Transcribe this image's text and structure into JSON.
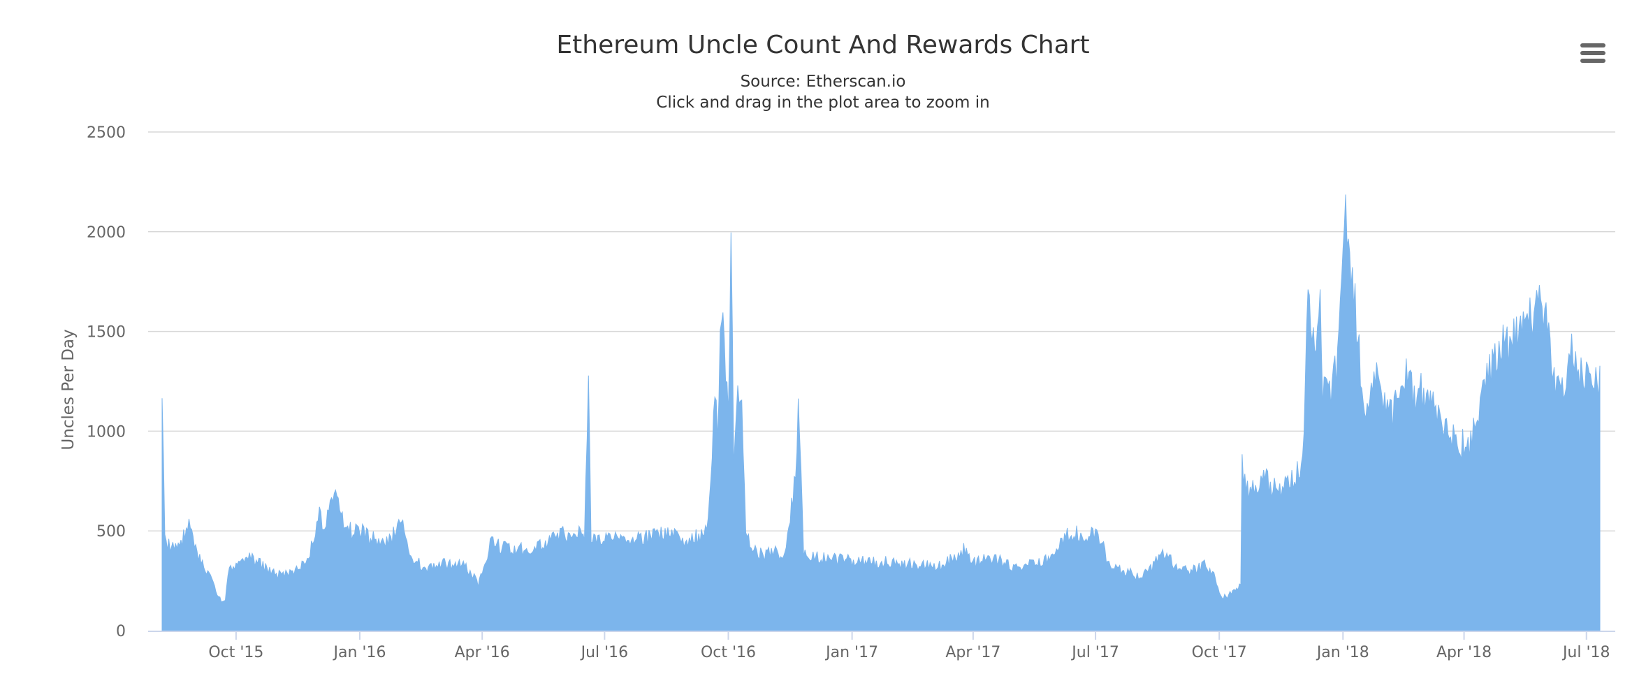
{
  "chart_data": {
    "type": "bar",
    "title": "Ethereum Uncle Count And Rewards Chart",
    "subtitle": [
      "Source: Etherscan.io",
      "Click and drag in the plot area to zoom in"
    ],
    "ylabel": "Uncles Per Day",
    "xlabel": "",
    "ylim": [
      0,
      2500
    ],
    "y_ticks": [
      0,
      500,
      1000,
      1500,
      2000,
      2500
    ],
    "x_range": [
      "2015-08-07",
      "2018-07-11"
    ],
    "x_ticks": [
      {
        "label": "Oct '15",
        "date": "2015-10-01"
      },
      {
        "label": "Jan '16",
        "date": "2016-01-01"
      },
      {
        "label": "Apr '16",
        "date": "2016-04-01"
      },
      {
        "label": "Jul '16",
        "date": "2016-07-01"
      },
      {
        "label": "Oct '16",
        "date": "2016-10-01"
      },
      {
        "label": "Jan '17",
        "date": "2017-01-01"
      },
      {
        "label": "Apr '17",
        "date": "2017-04-01"
      },
      {
        "label": "Jul '17",
        "date": "2017-07-01"
      },
      {
        "label": "Oct '17",
        "date": "2017-10-01"
      },
      {
        "label": "Jan '18",
        "date": "2018-01-01"
      },
      {
        "label": "Apr '18",
        "date": "2018-04-01"
      },
      {
        "label": "Jul '18",
        "date": "2018-07-01"
      }
    ],
    "grid": true,
    "legend": "none",
    "series": [
      {
        "color": "#7cb5ec",
        "points": [
          [
            "2015-08-07",
            1290
          ],
          [
            "2015-08-09",
            450
          ],
          [
            "2015-08-13",
            420
          ],
          [
            "2015-08-20",
            450
          ],
          [
            "2015-08-27",
            520
          ],
          [
            "2015-09-03",
            370
          ],
          [
            "2015-09-08",
            300
          ],
          [
            "2015-09-14",
            250
          ],
          [
            "2015-09-20",
            140
          ],
          [
            "2015-09-23",
            150
          ],
          [
            "2015-09-26",
            320
          ],
          [
            "2015-10-02",
            340
          ],
          [
            "2015-10-10",
            380
          ],
          [
            "2015-10-20",
            330
          ],
          [
            "2015-10-31",
            280
          ],
          [
            "2015-11-10",
            290
          ],
          [
            "2015-11-20",
            350
          ],
          [
            "2015-11-28",
            450
          ],
          [
            "2015-12-01",
            600
          ],
          [
            "2015-12-05",
            520
          ],
          [
            "2015-12-12",
            700
          ],
          [
            "2015-12-19",
            560
          ],
          [
            "2015-12-26",
            500
          ],
          [
            "2015-12-29",
            530
          ],
          [
            "2016-01-05",
            480
          ],
          [
            "2016-01-15",
            450
          ],
          [
            "2016-01-25",
            470
          ],
          [
            "2016-01-30",
            540
          ],
          [
            "2016-02-02",
            550
          ],
          [
            "2016-02-07",
            360
          ],
          [
            "2016-02-20",
            320
          ],
          [
            "2016-03-01",
            340
          ],
          [
            "2016-03-10",
            340
          ],
          [
            "2016-03-18",
            330
          ],
          [
            "2016-03-25",
            280
          ],
          [
            "2016-03-29",
            230
          ],
          [
            "2016-04-03",
            350
          ],
          [
            "2016-04-08",
            450
          ],
          [
            "2016-04-20",
            410
          ],
          [
            "2016-05-05",
            410
          ],
          [
            "2016-05-20",
            450
          ],
          [
            "2016-06-01",
            490
          ],
          [
            "2016-06-10",
            500
          ],
          [
            "2016-06-16",
            470
          ],
          [
            "2016-06-18",
            1050
          ],
          [
            "2016-06-19",
            1220
          ],
          [
            "2016-06-21",
            470
          ],
          [
            "2016-07-01",
            460
          ],
          [
            "2016-07-15",
            470
          ],
          [
            "2016-08-01",
            470
          ],
          [
            "2016-08-15",
            500
          ],
          [
            "2016-09-01",
            460
          ],
          [
            "2016-09-15",
            490
          ],
          [
            "2016-09-19",
            850
          ],
          [
            "2016-09-21",
            1300
          ],
          [
            "2016-09-23",
            900
          ],
          [
            "2016-09-25",
            1480
          ],
          [
            "2016-09-28",
            1500
          ],
          [
            "2016-10-01",
            1120
          ],
          [
            "2016-10-03",
            2040
          ],
          [
            "2016-10-05",
            870
          ],
          [
            "2016-10-08",
            1200
          ],
          [
            "2016-10-11",
            1150
          ],
          [
            "2016-10-14",
            500
          ],
          [
            "2016-10-16",
            450
          ],
          [
            "2016-10-22",
            390
          ],
          [
            "2016-11-01",
            390
          ],
          [
            "2016-11-12",
            400
          ],
          [
            "2016-11-20",
            780
          ],
          [
            "2016-11-22",
            1100
          ],
          [
            "2016-11-24",
            840
          ],
          [
            "2016-11-26",
            400
          ],
          [
            "2016-12-05",
            370
          ],
          [
            "2016-12-20",
            360
          ],
          [
            "2017-01-05",
            350
          ],
          [
            "2017-01-20",
            350
          ],
          [
            "2017-02-10",
            340
          ],
          [
            "2017-02-25",
            330
          ],
          [
            "2017-03-10",
            330
          ],
          [
            "2017-03-25",
            410
          ],
          [
            "2017-04-01",
            340
          ],
          [
            "2017-04-15",
            370
          ],
          [
            "2017-05-01",
            320
          ],
          [
            "2017-05-15",
            340
          ],
          [
            "2017-06-01",
            380
          ],
          [
            "2017-06-05",
            450
          ],
          [
            "2017-06-12",
            500
          ],
          [
            "2017-06-20",
            480
          ],
          [
            "2017-06-28",
            500
          ],
          [
            "2017-07-05",
            470
          ],
          [
            "2017-07-10",
            330
          ],
          [
            "2017-07-20",
            310
          ],
          [
            "2017-07-31",
            280
          ],
          [
            "2017-08-10",
            300
          ],
          [
            "2017-08-20",
            400
          ],
          [
            "2017-08-31",
            320
          ],
          [
            "2017-09-10",
            300
          ],
          [
            "2017-09-20",
            330
          ],
          [
            "2017-09-27",
            280
          ],
          [
            "2017-10-01",
            180
          ],
          [
            "2017-10-05",
            170
          ],
          [
            "2017-10-12",
            200
          ],
          [
            "2017-10-17",
            230
          ],
          [
            "2017-10-18",
            840
          ],
          [
            "2017-10-22",
            700
          ],
          [
            "2017-11-01",
            760
          ],
          [
            "2017-11-15",
            730
          ],
          [
            "2017-11-25",
            760
          ],
          [
            "2017-12-01",
            850
          ],
          [
            "2017-12-04",
            1200
          ],
          [
            "2017-12-06",
            1780
          ],
          [
            "2017-12-08",
            1450
          ],
          [
            "2017-12-12",
            1500
          ],
          [
            "2017-12-15",
            1640
          ],
          [
            "2017-12-17",
            1250
          ],
          [
            "2017-12-24",
            1200
          ],
          [
            "2017-12-28",
            1360
          ],
          [
            "2017-12-31",
            1800
          ],
          [
            "2018-01-01",
            2080
          ],
          [
            "2018-01-03",
            2070
          ],
          [
            "2018-01-06",
            1950
          ],
          [
            "2018-01-09",
            1750
          ],
          [
            "2018-01-13",
            1400
          ],
          [
            "2018-01-17",
            1150
          ],
          [
            "2018-01-24",
            1300
          ],
          [
            "2018-01-31",
            1150
          ],
          [
            "2018-02-07",
            1100
          ],
          [
            "2018-02-15",
            1300
          ],
          [
            "2018-02-22",
            1200
          ],
          [
            "2018-03-01",
            1200
          ],
          [
            "2018-03-08",
            1180
          ],
          [
            "2018-03-15",
            1050
          ],
          [
            "2018-03-22",
            1000
          ],
          [
            "2018-03-29",
            950
          ],
          [
            "2018-04-05",
            910
          ],
          [
            "2018-04-09",
            1100
          ],
          [
            "2018-04-15",
            1200
          ],
          [
            "2018-04-21",
            1350
          ],
          [
            "2018-04-28",
            1500
          ],
          [
            "2018-05-05",
            1450
          ],
          [
            "2018-05-12",
            1550
          ],
          [
            "2018-05-19",
            1600
          ],
          [
            "2018-05-26",
            1620
          ],
          [
            "2018-06-01",
            1550
          ],
          [
            "2018-06-04",
            1500
          ],
          [
            "2018-06-08",
            1250
          ],
          [
            "2018-06-12",
            1200
          ],
          [
            "2018-06-16",
            1200
          ],
          [
            "2018-06-19",
            1500
          ],
          [
            "2018-06-22",
            1300
          ],
          [
            "2018-06-28",
            1280
          ],
          [
            "2018-07-03",
            1300
          ],
          [
            "2018-07-07",
            1250
          ],
          [
            "2018-07-11",
            1250
          ]
        ]
      }
    ]
  }
}
